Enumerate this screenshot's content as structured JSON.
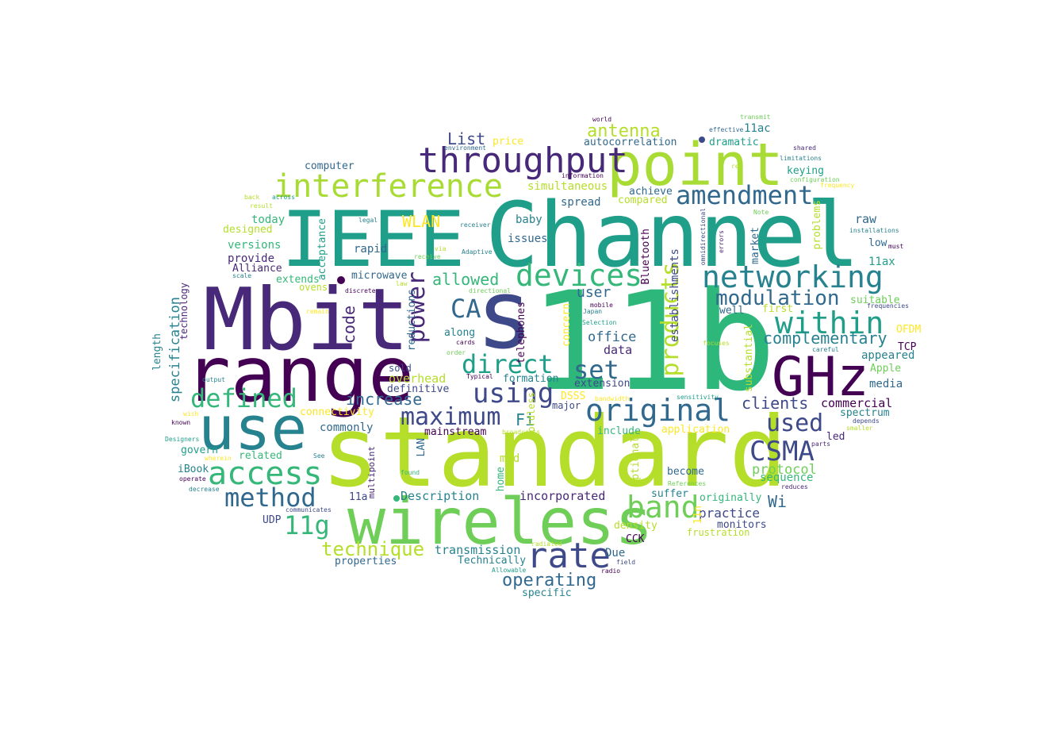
{
  "palette": [
    "#440154",
    "#482878",
    "#3e4989",
    "#31688e",
    "#26828e",
    "#1f9e89",
    "#35b779",
    "#6ece58",
    "#b5de2b",
    "#fde725"
  ],
  "words": [
    {
      "text": "11b",
      "color": "#2db77a"
    },
    {
      "text": "standard",
      "color": "#b5de2b"
    },
    {
      "text": "Channel",
      "color": "#1f9e89"
    },
    {
      "text": "Mbit",
      "color": "#482878"
    },
    {
      "text": "range",
      "color": "#440154"
    },
    {
      "text": "IEEE",
      "color": "#1f9e89"
    },
    {
      "text": "s",
      "color": "#3e4989"
    },
    {
      "text": "wireless",
      "color": "#6ece58"
    },
    {
      "text": "point",
      "color": "#a8db34"
    },
    {
      "text": "use",
      "color": "#26828e"
    },
    {
      "text": "GHz",
      "color": "#440154"
    },
    {
      "text": "throughput",
      "color": "#482878"
    },
    {
      "text": "interference",
      "color": "#a8db34"
    },
    {
      "text": "original",
      "color": "#31688e"
    },
    {
      "text": "networking",
      "color": "#26828e"
    },
    {
      "text": "devices",
      "color": "#35b779"
    },
    {
      "text": "rate",
      "color": "#3e4989"
    },
    {
      "text": "access",
      "color": "#35b779"
    },
    {
      "text": "CSMA",
      "color": "#3e4989"
    },
    {
      "text": "within",
      "color": "#1f9e89"
    },
    {
      "text": "amendment",
      "color": "#31688e"
    },
    {
      "text": "band",
      "color": "#6ece58"
    },
    {
      "text": "method",
      "color": "#31688e"
    },
    {
      "text": "products",
      "color": "#b5de2b"
    },
    {
      "text": "power",
      "color": "#482878"
    },
    {
      "text": "defined",
      "color": "#35b779"
    },
    {
      "text": "maximum",
      "color": "#3e4989"
    },
    {
      "text": "using",
      "color": "#3e4989"
    },
    {
      "text": "direct",
      "color": "#1f9e89"
    },
    {
      "text": "CA",
      "color": "#31688e"
    },
    {
      "text": "set",
      "color": "#31688e"
    },
    {
      "text": "used",
      "color": "#3e4989"
    },
    {
      "text": "11g",
      "color": "#35b779"
    },
    {
      "text": "modulation",
      "color": "#31688e"
    },
    {
      "text": "technique",
      "color": "#b5de2b"
    },
    {
      "text": "complementary",
      "color": "#26828e"
    },
    {
      "text": "operating",
      "color": "#31688e"
    },
    {
      "text": "antenna",
      "color": "#b5de2b"
    },
    {
      "text": "increase",
      "color": "#31688e"
    },
    {
      "text": "clients",
      "color": "#3e4989"
    },
    {
      "text": "allowed",
      "color": "#35b779"
    },
    {
      "text": "WLAN",
      "color": "#fde725"
    },
    {
      "text": "List",
      "color": "#3e4989"
    },
    {
      "text": "code",
      "color": "#482878"
    },
    {
      "text": "protocol",
      "color": "#6ece58"
    },
    {
      "text": "Wi",
      "color": "#31688e"
    },
    {
      "text": "Fi",
      "color": "#26828e"
    },
    {
      "text": "user",
      "color": "#31688e"
    },
    {
      "text": "office",
      "color": "#31688e"
    },
    {
      "text": "incorporated",
      "color": "#482878"
    },
    {
      "text": "transmission",
      "color": "#26828e"
    },
    {
      "text": "practice",
      "color": "#3e4989"
    },
    {
      "text": "commercial",
      "color": "#440154"
    },
    {
      "text": "Description",
      "color": "#26828e"
    },
    {
      "text": "overhead",
      "color": "#b5de2b"
    },
    {
      "text": "data",
      "color": "#482878"
    },
    {
      "text": "sequence",
      "color": "#35b779"
    },
    {
      "text": "specification",
      "color": "#26828e"
    },
    {
      "text": "simultaneous",
      "color": "#b5de2b"
    },
    {
      "text": "keying",
      "color": "#1f9e89"
    },
    {
      "text": "raw",
      "color": "#31688e"
    },
    {
      "text": "establishments",
      "color": "#3e4989"
    },
    {
      "text": "substantial",
      "color": "#b5de2b"
    },
    {
      "text": "spectrum",
      "color": "#26828e"
    },
    {
      "text": "autocorrelation",
      "color": "#31688e"
    },
    {
      "text": "computer",
      "color": "#31688e"
    },
    {
      "text": "11ac",
      "color": "#26828e"
    },
    {
      "text": "dramatic",
      "color": "#1f9e89"
    },
    {
      "text": "price",
      "color": "#fde725"
    },
    {
      "text": "achieve",
      "color": "#31688e"
    },
    {
      "text": "compared",
      "color": "#b5de2b"
    },
    {
      "text": "spread",
      "color": "#31688e"
    },
    {
      "text": "baby",
      "color": "#26828e"
    },
    {
      "text": "issues",
      "color": "#31688e"
    },
    {
      "text": "rapid",
      "color": "#31688e"
    },
    {
      "text": "Bluetooth",
      "color": "#440154"
    },
    {
      "text": "today",
      "color": "#35b779"
    },
    {
      "text": "designed",
      "color": "#b5de2b"
    },
    {
      "text": "versions",
      "color": "#35b779"
    },
    {
      "text": "provide",
      "color": "#482878"
    },
    {
      "text": "Alliance",
      "color": "#482878"
    },
    {
      "text": "acceptance",
      "color": "#1f9e89"
    },
    {
      "text": "extends",
      "color": "#35b779"
    },
    {
      "text": "ovens",
      "color": "#b5de2b"
    },
    {
      "text": "microwave",
      "color": "#31688e"
    },
    {
      "text": "reductions",
      "color": "#31688e"
    },
    {
      "text": "along",
      "color": "#26828e"
    },
    {
      "text": "telephones",
      "color": "#440154"
    },
    {
      "text": "concern",
      "color": "#fde725"
    },
    {
      "text": "market",
      "color": "#31688e"
    },
    {
      "text": "problems",
      "color": "#b5de2b"
    },
    {
      "text": "low",
      "color": "#31688e"
    },
    {
      "text": "11ax",
      "color": "#1f9e89"
    },
    {
      "text": "well",
      "color": "#31688e"
    },
    {
      "text": "first",
      "color": "#b5de2b"
    },
    {
      "text": "suitable",
      "color": "#6ece58"
    },
    {
      "text": "OFDM",
      "color": "#fde725"
    },
    {
      "text": "TCP",
      "color": "#440154"
    },
    {
      "text": "appeared",
      "color": "#26828e"
    },
    {
      "text": "Apple",
      "color": "#6ece58"
    },
    {
      "text": "media",
      "color": "#31688e"
    },
    {
      "text": "length",
      "color": "#26828e"
    },
    {
      "text": "technology",
      "color": "#482878"
    },
    {
      "text": "sold",
      "color": "#3e4989"
    },
    {
      "text": "definitive",
      "color": "#3e4989"
    },
    {
      "text": "formation",
      "color": "#26828e"
    },
    {
      "text": "extension",
      "color": "#3e4989"
    },
    {
      "text": "connectivity",
      "color": "#fde725"
    },
    {
      "text": "DSSS",
      "color": "#fde725"
    },
    {
      "text": "major",
      "color": "#3e4989"
    },
    {
      "text": "cordless",
      "color": "#b5de2b"
    },
    {
      "text": "commonly",
      "color": "#31688e"
    },
    {
      "text": "mainstream",
      "color": "#440154"
    },
    {
      "text": "include",
      "color": "#35b779"
    },
    {
      "text": "application",
      "color": "#fde725"
    },
    {
      "text": "led",
      "color": "#482878"
    },
    {
      "text": "govern",
      "color": "#1f9e89"
    },
    {
      "text": "related",
      "color": "#35b779"
    },
    {
      "text": "LAN",
      "color": "#31688e"
    },
    {
      "text": "mid",
      "color": "#b5de2b"
    },
    {
      "text": "iBook",
      "color": "#26828e"
    },
    {
      "text": "home",
      "color": "#35b779"
    },
    {
      "text": "optional",
      "color": "#b5de2b"
    },
    {
      "text": "become",
      "color": "#31688e"
    },
    {
      "text": "multipoint",
      "color": "#482878"
    },
    {
      "text": "suffer",
      "color": "#26828e"
    },
    {
      "text": "originally",
      "color": "#35b779"
    },
    {
      "text": "11a",
      "color": "#3e4989"
    },
    {
      "text": "11n",
      "color": "#fde725"
    },
    {
      "text": "monitors",
      "color": "#3e4989"
    },
    {
      "text": "UDP",
      "color": "#3e4989"
    },
    {
      "text": "density",
      "color": "#b5de2b"
    },
    {
      "text": "frustration",
      "color": "#b5de2b"
    },
    {
      "text": "CCK",
      "color": "#440154"
    },
    {
      "text": "Due",
      "color": "#31688e"
    },
    {
      "text": "Technically",
      "color": "#26828e"
    },
    {
      "text": "properties",
      "color": "#31688e"
    },
    {
      "text": "specific",
      "color": "#26828e"
    },
    {
      "text": "world",
      "color": "#440154"
    },
    {
      "text": "transmit",
      "color": "#6ece58"
    },
    {
      "text": "effective",
      "color": "#31688e"
    },
    {
      "text": "environment",
      "color": "#31688e"
    },
    {
      "text": "shared",
      "color": "#482878"
    },
    {
      "text": "limitations",
      "color": "#26828e"
    },
    {
      "text": "re",
      "color": "#b5de2b"
    },
    {
      "text": "information",
      "color": "#440154"
    },
    {
      "text": "configuration",
      "color": "#6ece58"
    },
    {
      "text": "frequency",
      "color": "#fde725"
    },
    {
      "text": "back",
      "color": "#b5de2b"
    },
    {
      "text": "across",
      "color": "#1f9e89"
    },
    {
      "text": "result",
      "color": "#b5de2b"
    },
    {
      "text": "legal",
      "color": "#26828e"
    },
    {
      "text": "receiver",
      "color": "#26828e"
    },
    {
      "text": "omnidirectional",
      "color": "#3e4989"
    },
    {
      "text": "errors",
      "color": "#482878"
    },
    {
      "text": "Note",
      "color": "#6ece58"
    },
    {
      "text": "installations",
      "color": "#26828e"
    },
    {
      "text": "must",
      "color": "#440154"
    },
    {
      "text": "scale",
      "color": "#26828e"
    },
    {
      "text": "via",
      "color": "#b5de2b"
    },
    {
      "text": "receive",
      "color": "#6ece58"
    },
    {
      "text": "Adaptive",
      "color": "#26828e"
    },
    {
      "text": "law",
      "color": "#b5de2b"
    },
    {
      "text": "discrete",
      "color": "#440154"
    },
    {
      "text": "mobile",
      "color": "#440154"
    },
    {
      "text": "remain",
      "color": "#fde725"
    },
    {
      "text": "Japan",
      "color": "#26828e"
    },
    {
      "text": "Selection",
      "color": "#1f9e89"
    },
    {
      "text": "frequencies",
      "color": "#3e4989"
    },
    {
      "text": "cards",
      "color": "#440154"
    },
    {
      "text": "order",
      "color": "#6ece58"
    },
    {
      "text": "focuses",
      "color": "#b5de2b"
    },
    {
      "text": "careful",
      "color": "#26828e"
    },
    {
      "text": "Typical",
      "color": "#440154"
    },
    {
      "text": "output",
      "color": "#26828e"
    },
    {
      "text": "directional",
      "color": "#6ece58"
    },
    {
      "text": "bandwidth",
      "color": "#fde725"
    },
    {
      "text": "sensitivity",
      "color": "#1f9e89"
    },
    {
      "text": "wish",
      "color": "#fde725"
    },
    {
      "text": "known",
      "color": "#440154"
    },
    {
      "text": "depends",
      "color": "#3e4989"
    },
    {
      "text": "smaller",
      "color": "#b5de2b"
    },
    {
      "text": "broadcasts",
      "color": "#b5de2b"
    },
    {
      "text": "Designers",
      "color": "#1f9e89"
    },
    {
      "text": "parts",
      "color": "#482878"
    },
    {
      "text": "See",
      "color": "#26828e"
    },
    {
      "text": "wherein",
      "color": "#fde725"
    },
    {
      "text": "found",
      "color": "#35b779"
    },
    {
      "text": "operate",
      "color": "#440154"
    },
    {
      "text": "References",
      "color": "#6ece58"
    },
    {
      "text": "decrease",
      "color": "#26828e"
    },
    {
      "text": "reduces",
      "color": "#482878"
    },
    {
      "text": "communicates",
      "color": "#3e4989"
    },
    {
      "text": "radiated",
      "color": "#b5de2b"
    },
    {
      "text": "field",
      "color": "#3e4989"
    },
    {
      "text": "Allowable",
      "color": "#1f9e89"
    },
    {
      "text": "radio",
      "color": "#440154"
    }
  ]
}
